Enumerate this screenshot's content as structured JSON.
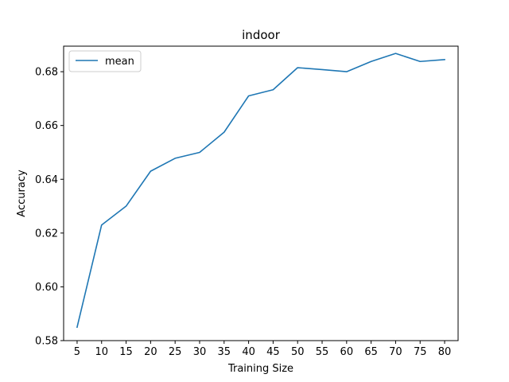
{
  "chart_data": {
    "type": "line",
    "title": "indoor",
    "xlabel": "Training Size",
    "ylabel": "Accuracy",
    "x": [
      5,
      10,
      15,
      20,
      25,
      30,
      35,
      40,
      45,
      50,
      55,
      60,
      65,
      70,
      75,
      80
    ],
    "xticks": [
      "5",
      "10",
      "15",
      "20",
      "25",
      "30",
      "35",
      "40",
      "45",
      "50",
      "55",
      "60",
      "65",
      "70",
      "75",
      "80"
    ],
    "yticks": [
      "0.58",
      "0.60",
      "0.62",
      "0.64",
      "0.66",
      "0.68"
    ],
    "ytick_values": [
      0.58,
      0.6,
      0.62,
      0.64,
      0.66,
      0.68
    ],
    "xlim": [
      2.25,
      82.75
    ],
    "ylim": [
      0.58,
      0.6895
    ],
    "grid": false,
    "legend_position": "upper-left",
    "series": [
      {
        "name": "mean",
        "color": "#1f77b4",
        "values": [
          0.585,
          0.623,
          0.63,
          0.643,
          0.6478,
          0.65,
          0.6575,
          0.671,
          0.6733,
          0.6815,
          0.6808,
          0.68,
          0.6838,
          0.6868,
          0.6838,
          0.6845
        ]
      }
    ]
  }
}
